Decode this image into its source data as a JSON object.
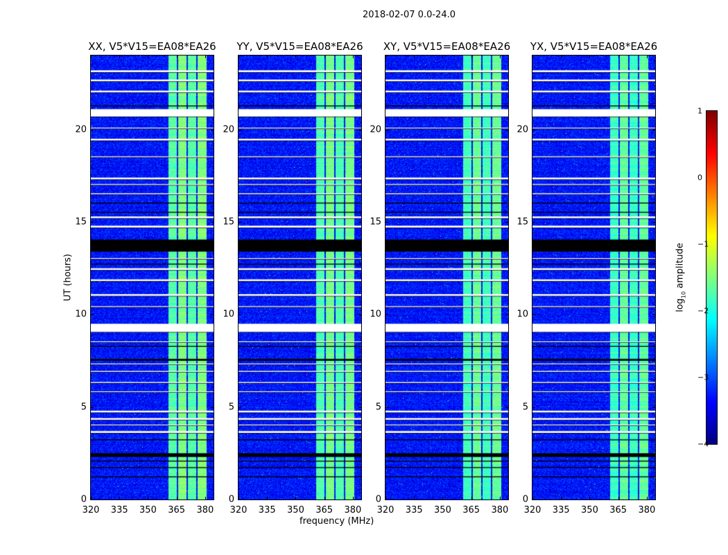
{
  "chart_data": {
    "type": "heatmap",
    "title": "2018-02-07 0.0-24.0",
    "xlabel": "frequency (MHz)",
    "ylabel": "UT (hours)",
    "xlim": [
      320,
      384.4
    ],
    "ylim": [
      0,
      24
    ],
    "xticks": [
      "320",
      "335",
      "350",
      "365",
      "380"
    ],
    "xtick_values": [
      320,
      335,
      350,
      365,
      380
    ],
    "yticks": [
      "0",
      "5",
      "10",
      "15",
      "20"
    ],
    "ytick_values": [
      0,
      5,
      10,
      15,
      20
    ],
    "panels": [
      {
        "title": "XX, V5*V15=EA08*EA26",
        "band_level": -1.7
      },
      {
        "title": "YY, V5*V15=EA08*EA26",
        "band_level": -1.75
      },
      {
        "title": "XY, V5*V15=EA08*EA26",
        "band_level": -1.8
      },
      {
        "title": "YX, V5*V15=EA08*EA26",
        "band_level": -1.85
      }
    ],
    "background_level": -3.3,
    "bright_subbands_mhz": [
      [
        360.7,
        365.0
      ],
      [
        365.6,
        370.0
      ],
      [
        370.6,
        375.2
      ],
      [
        375.8,
        380.4
      ]
    ],
    "flagged_white_hours": [
      [
        20.7,
        21.1
      ],
      [
        9.05,
        9.5
      ],
      [
        4.3,
        4.4
      ],
      [
        4.0,
        4.05
      ],
      [
        3.6,
        3.7
      ],
      [
        22.0,
        22.1
      ],
      [
        22.6,
        22.7
      ],
      [
        23.1,
        23.2
      ],
      [
        20.05,
        20.1
      ],
      [
        19.4,
        19.5
      ],
      [
        18.5,
        18.55
      ],
      [
        17.3,
        17.4
      ],
      [
        17.0,
        17.05
      ],
      [
        16.5,
        16.55
      ],
      [
        15.2,
        15.3
      ],
      [
        14.7,
        14.8
      ],
      [
        13.0,
        13.05
      ],
      [
        12.4,
        12.5
      ],
      [
        11.8,
        11.9
      ],
      [
        11.0,
        11.1
      ],
      [
        10.4,
        10.45
      ],
      [
        8.5,
        8.55
      ],
      [
        7.3,
        7.35
      ],
      [
        6.9,
        6.95
      ],
      [
        6.3,
        6.35
      ],
      [
        5.8,
        5.85
      ],
      [
        4.7,
        4.8
      ]
    ],
    "flagged_black_hours": [
      [
        13.4,
        14.05
      ],
      [
        2.3,
        2.5
      ],
      [
        2.05,
        2.1
      ],
      [
        7.5,
        7.6
      ],
      [
        8.25,
        8.3
      ],
      [
        12.7,
        12.75
      ],
      [
        15.5,
        15.55
      ],
      [
        16.0,
        16.05
      ],
      [
        21.25,
        21.3
      ],
      [
        3.2,
        3.25
      ],
      [
        1.7,
        1.75
      ],
      [
        1.2,
        1.25
      ]
    ],
    "colorbar": {
      "label": "log10 amplitude",
      "label_main": "log",
      "label_sub": "10",
      "label_rest": " amplitude",
      "range": [
        -4,
        1
      ],
      "ticks": [
        "1",
        "0",
        "−1",
        "−2",
        "−3",
        "−4"
      ],
      "tick_values": [
        1,
        0,
        -1,
        -2,
        -3,
        -4
      ],
      "colormap": "jet"
    }
  }
}
